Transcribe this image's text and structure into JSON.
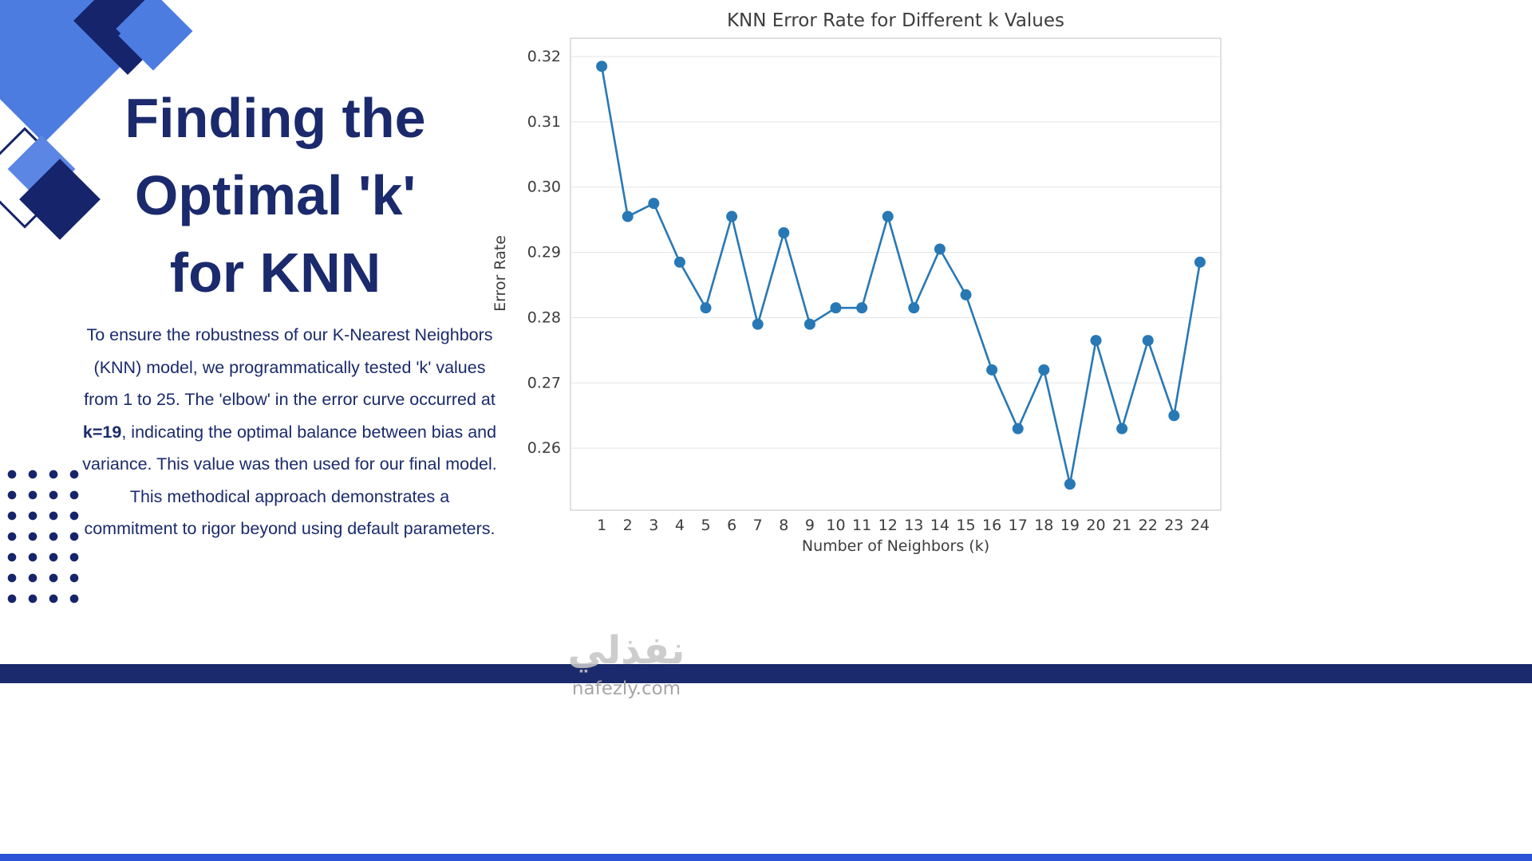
{
  "slide": {
    "title_lines": [
      "Finding the",
      "Optimal 'k'",
      "for KNN"
    ],
    "paragraph": {
      "before": "To ensure the robustness of our K-Nearest Neighbors (KNN) model, we programmatically tested 'k' values from 1 to 25. The 'elbow' in the error curve occurred at ",
      "bold": "k=19",
      "after": ", indicating the optimal balance between bias and variance. This value was then used for our final model. This methodical approach demonstrates a commitment to rigor beyond using default parameters."
    }
  },
  "watermark": {
    "arabic": "نفذلي",
    "site": "nafezly.com"
  },
  "colors": {
    "navy": "#1a2a6c",
    "accent_blue": "#4c7ce0",
    "line": "#2878b5",
    "grid": "#e7e7e7",
    "plot_border": "#cccccc",
    "tick_text": "#3d3d3d",
    "footer_strip": "#2b55d6"
  },
  "chart_data": {
    "type": "line",
    "title": "KNN Error Rate for Different k Values",
    "xlabel": "Number of Neighbors (k)",
    "ylabel": "Error Rate",
    "x": [
      1,
      2,
      3,
      4,
      5,
      6,
      7,
      8,
      9,
      10,
      11,
      12,
      13,
      14,
      15,
      16,
      17,
      18,
      19,
      20,
      21,
      22,
      23,
      24
    ],
    "y": [
      0.3185,
      0.2955,
      0.2975,
      0.2885,
      0.2815,
      0.2955,
      0.279,
      0.293,
      0.279,
      0.2815,
      0.2815,
      0.2955,
      0.2815,
      0.2905,
      0.2835,
      0.272,
      0.263,
      0.272,
      0.2545,
      0.2765,
      0.263,
      0.2765,
      0.265,
      0.2885
    ],
    "yticks": [
      0.26,
      0.27,
      0.28,
      0.29,
      0.3,
      0.31,
      0.32
    ],
    "ylim": [
      0.2505,
      0.3228
    ],
    "xlim": [
      -0.2,
      24.8
    ],
    "grid": "horizontal",
    "legend": "none",
    "marker": "circle"
  }
}
